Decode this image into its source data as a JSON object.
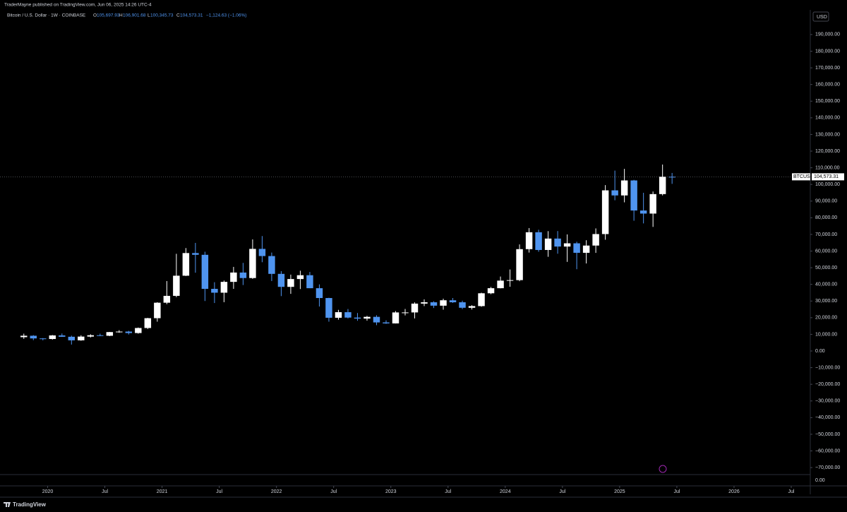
{
  "chart_data": {
    "type": "candlestick",
    "header": "TraderMayne published on TradingView.com, Jun 06, 2025 14:26 UTC-4",
    "symbol": "Bitcoin / U.S. Dollar · 1W · COINBASE",
    "legend": {
      "o_label": "O",
      "open": "105,697.93",
      "h_label": "H",
      "high": "106,901.68",
      "l_label": "L",
      "low": "100,345.73",
      "c_label": "C",
      "close": "104,573.31",
      "change": "−1,124.63 (−1.06%)"
    },
    "currency": "USD",
    "last_price": {
      "name": "BTCUSD",
      "value": 104573.31,
      "label": "104,573.31"
    },
    "brand": "TradingView",
    "up_color": "#ffffff",
    "down_color": "#4f94ef",
    "x": [
      "2019-10",
      "2019-11",
      "2019-12",
      "2020-01",
      "2020-02",
      "2020-03",
      "2020-04",
      "2020-05",
      "2020-06",
      "2020-07",
      "2020-08",
      "2020-09",
      "2020-10",
      "2020-11",
      "2020-12",
      "2021-01",
      "2021-02",
      "2021-03",
      "2021-04",
      "2021-05",
      "2021-06",
      "2021-07",
      "2021-08",
      "2021-09",
      "2021-10",
      "2021-11",
      "2021-12",
      "2022-01",
      "2022-02",
      "2022-03",
      "2022-04",
      "2022-05",
      "2022-06",
      "2022-07",
      "2022-08",
      "2022-09",
      "2022-10",
      "2022-11",
      "2022-12",
      "2023-01",
      "2023-02",
      "2023-03",
      "2023-04",
      "2023-05",
      "2023-06",
      "2023-07",
      "2023-08",
      "2023-09",
      "2023-10",
      "2023-11",
      "2023-12",
      "2024-01",
      "2024-02",
      "2024-03",
      "2024-04",
      "2024-05",
      "2024-06",
      "2024-07",
      "2024-08",
      "2024-09",
      "2024-10",
      "2024-11",
      "2024-12",
      "2025-01",
      "2025-02",
      "2025-03",
      "2025-04",
      "2025-05",
      "2025-06"
    ],
    "open": [
      8300,
      9150,
      7550,
      7200,
      9350,
      8550,
      6400,
      8650,
      9450,
      9140,
      11350,
      11650,
      10780,
      13800,
      19700,
      28990,
      33100,
      45200,
      58800,
      57750,
      37300,
      35000,
      41500,
      47100,
      43800,
      61300,
      57000,
      46300,
      38500,
      43200,
      45500,
      37700,
      31800,
      19950,
      23300,
      20050,
      19450,
      20500,
      17150,
      16550,
      23150,
      23150,
      28450,
      29250,
      27200,
      30450,
      29250,
      25950,
      26950,
      34650,
      37700,
      42250,
      42550,
      61150,
      71300,
      60650,
      67500,
      62700,
      64650,
      58950,
      63300,
      70200,
      96450,
      93400,
      102400,
      84350,
      82500,
      94200,
      104600
    ],
    "high": [
      10400,
      9500,
      7750,
      9600,
      10500,
      9200,
      9450,
      10050,
      10400,
      11450,
      12500,
      12100,
      14100,
      19900,
      29300,
      42000,
      58350,
      61800,
      64900,
      59600,
      41300,
      42300,
      50500,
      52900,
      67000,
      69000,
      59100,
      47950,
      45850,
      48200,
      47450,
      40000,
      31950,
      24700,
      25200,
      22800,
      21100,
      21450,
      18400,
      23950,
      25250,
      29200,
      31000,
      29850,
      31400,
      31800,
      30200,
      27500,
      35000,
      38450,
      44700,
      48950,
      64000,
      73800,
      72800,
      71950,
      72000,
      70000,
      65600,
      66500,
      73600,
      99600,
      108300,
      109350,
      102750,
      95000,
      95750,
      111950,
      106900
    ],
    "low": [
      7300,
      6500,
      6400,
      6850,
      8450,
      3850,
      6150,
      8100,
      8900,
      8900,
      10950,
      9900,
      10400,
      13200,
      17600,
      28100,
      32300,
      45000,
      47000,
      30000,
      28800,
      29300,
      37300,
      39600,
      43300,
      53300,
      42000,
      32950,
      34300,
      37200,
      37700,
      26700,
      17600,
      18800,
      19550,
      18150,
      18200,
      15500,
      16300,
      16500,
      21350,
      19550,
      26950,
      25800,
      24800,
      28850,
      25150,
      24900,
      26550,
      34100,
      37600,
      38550,
      41900,
      59100,
      59600,
      56550,
      58400,
      53500,
      49100,
      52550,
      58900,
      66800,
      90500,
      89250,
      78200,
      76600,
      74500,
      93400,
      100350
    ],
    "close": [
      9150,
      7550,
      7200,
      9350,
      8550,
      6400,
      8650,
      9450,
      9140,
      11350,
      11650,
      10780,
      13800,
      19700,
      28990,
      33100,
      45200,
      58800,
      57750,
      37300,
      35000,
      41500,
      47100,
      43800,
      61300,
      57000,
      46300,
      38500,
      43200,
      45500,
      37700,
      31800,
      19950,
      23300,
      20050,
      19450,
      20500,
      17150,
      16550,
      23150,
      23150,
      28450,
      29250,
      27200,
      30450,
      29250,
      25950,
      26950,
      34650,
      37700,
      42250,
      42550,
      61150,
      71300,
      60650,
      67500,
      62700,
      64650,
      58950,
      63300,
      70200,
      96450,
      93400,
      102400,
      84350,
      82500,
      94200,
      104600,
      104573.31
    ],
    "xlim": [
      "2019-08",
      "2026-09"
    ],
    "xticks": [
      {
        "value": "2020-01",
        "label": "2020"
      },
      {
        "value": "2020-07",
        "label": "Jul"
      },
      {
        "value": "2021-01",
        "label": "2021"
      },
      {
        "value": "2021-07",
        "label": "Jul"
      },
      {
        "value": "2022-01",
        "label": "2022"
      },
      {
        "value": "2022-07",
        "label": "Jul"
      },
      {
        "value": "2023-01",
        "label": "2023"
      },
      {
        "value": "2023-07",
        "label": "Jul"
      },
      {
        "value": "2024-01",
        "label": "2024"
      },
      {
        "value": "2024-07",
        "label": "Jul"
      },
      {
        "value": "2025-01",
        "label": "2025"
      },
      {
        "value": "2025-07",
        "label": "Jul"
      },
      {
        "value": "2026-01",
        "label": "2026"
      },
      {
        "value": "2026-07",
        "label": "Jul"
      }
    ],
    "ylim": [
      -74200,
      204800
    ],
    "yticks": [
      {
        "value": -70000,
        "label": "−70,000.00"
      },
      {
        "value": -60000,
        "label": "−60,000.00"
      },
      {
        "value": -50000,
        "label": "−50,000.00"
      },
      {
        "value": -40000,
        "label": "−40,000.00"
      },
      {
        "value": -30000,
        "label": "−30,000.00"
      },
      {
        "value": -20000,
        "label": "−20,000.00"
      },
      {
        "value": -10000,
        "label": "−10,000.00"
      },
      {
        "value": 0,
        "label": "0.00"
      },
      {
        "value": 10000,
        "label": "10,000.00"
      },
      {
        "value": 20000,
        "label": "20,000.00"
      },
      {
        "value": 30000,
        "label": "30,000.00"
      },
      {
        "value": 40000,
        "label": "40,000.00"
      },
      {
        "value": 50000,
        "label": "50,000.00"
      },
      {
        "value": 60000,
        "label": "60,000.00"
      },
      {
        "value": 70000,
        "label": "70,000.00"
      },
      {
        "value": 80000,
        "label": "80,000.00"
      },
      {
        "value": 90000,
        "label": "90,000.00"
      },
      {
        "value": 100000,
        "label": "100,000.00"
      },
      {
        "value": 110000,
        "label": "110,000.00"
      },
      {
        "value": 120000,
        "label": "120,000.00"
      },
      {
        "value": 130000,
        "label": "130,000.00"
      },
      {
        "value": 140000,
        "label": "140,000.00"
      },
      {
        "value": 150000,
        "label": "150,000.00"
      },
      {
        "value": 160000,
        "label": "160,000.00"
      },
      {
        "value": 170000,
        "label": "170,000.00"
      },
      {
        "value": 180000,
        "label": "180,000.00"
      },
      {
        "value": 190000,
        "label": "190,000.00"
      }
    ],
    "lower_pane_ticks": [
      {
        "value": 0,
        "label": "0.00"
      }
    ]
  }
}
